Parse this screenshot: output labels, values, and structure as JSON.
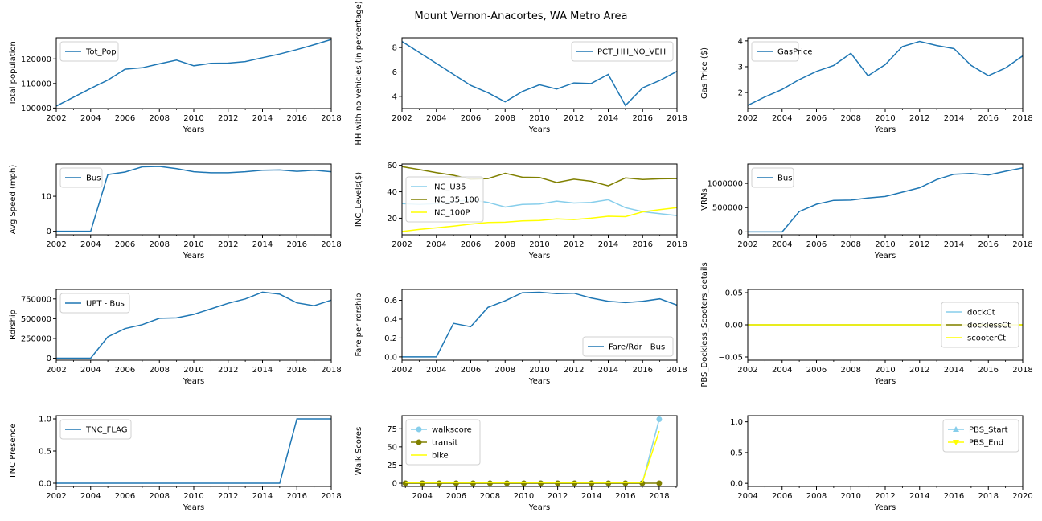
{
  "figure_title": "Mount Vernon-Anacortes, WA Metro Area",
  "x_axis_label": "Years",
  "chart_data": [
    {
      "type": "line",
      "title": "",
      "xlabel": "Years",
      "ylabel": "Total population",
      "xlim": [
        2002,
        2018
      ],
      "ylim": [
        99800,
        128600
      ],
      "xticks": [
        2002,
        2004,
        2006,
        2008,
        2010,
        2012,
        2014,
        2016,
        2018
      ],
      "yticks": [
        100000,
        110000,
        120000
      ],
      "yticklabels": [
        "100000",
        "110000",
        "120000"
      ],
      "legend_loc": "upper-left",
      "series": [
        {
          "name": "Tot_Pop",
          "color": "#1f77b4",
          "x": [
            2002,
            2003,
            2004,
            2005,
            2006,
            2007,
            2008,
            2009,
            2010,
            2011,
            2012,
            2013,
            2014,
            2015,
            2016,
            2017,
            2018
          ],
          "y": [
            100800,
            104400,
            108000,
            111400,
            115800,
            116400,
            118000,
            119500,
            117200,
            118200,
            118300,
            118900,
            120500,
            122000,
            123800,
            125800,
            127900
          ]
        }
      ]
    },
    {
      "type": "line",
      "title": "",
      "xlabel": "Years",
      "ylabel": "HH with no vehicles (in percentage)",
      "xlim": [
        2002,
        2018
      ],
      "ylim": [
        3.0,
        8.8
      ],
      "xticks": [
        2002,
        2004,
        2006,
        2008,
        2010,
        2012,
        2014,
        2016,
        2018
      ],
      "yticks": [
        4,
        6,
        8
      ],
      "yticklabels": [
        "4",
        "6",
        "8"
      ],
      "legend_loc": "upper-right",
      "series": [
        {
          "name": "PCT_HH_NO_VEH",
          "color": "#1f77b4",
          "x": [
            2002,
            2003,
            2004,
            2005,
            2006,
            2007,
            2008,
            2009,
            2010,
            2011,
            2012,
            2013,
            2014,
            2015,
            2016,
            2017,
            2018
          ],
          "y": [
            8.5,
            7.6,
            6.7,
            5.8,
            4.9,
            4.3,
            3.55,
            4.4,
            4.95,
            4.6,
            5.1,
            5.05,
            5.8,
            3.25,
            4.7,
            5.3,
            6.05
          ]
        }
      ]
    },
    {
      "type": "line",
      "title": "",
      "xlabel": "Years",
      "ylabel": "Gas Price ($)",
      "xlim": [
        2002,
        2018
      ],
      "ylim": [
        1.38,
        4.12
      ],
      "xticks": [
        2002,
        2004,
        2006,
        2008,
        2010,
        2012,
        2014,
        2016,
        2018
      ],
      "yticks": [
        2,
        3,
        4
      ],
      "yticklabels": [
        "2",
        "3",
        "4"
      ],
      "legend_loc": "upper-left",
      "series": [
        {
          "name": "GasPrice",
          "color": "#1f77b4",
          "x": [
            2002,
            2003,
            2004,
            2005,
            2006,
            2007,
            2008,
            2009,
            2010,
            2011,
            2012,
            2013,
            2014,
            2015,
            2016,
            2017,
            2018
          ],
          "y": [
            1.5,
            1.83,
            2.12,
            2.5,
            2.82,
            3.05,
            3.52,
            2.65,
            3.08,
            3.78,
            3.98,
            3.82,
            3.7,
            3.05,
            2.65,
            2.95,
            3.42
          ]
        }
      ]
    },
    {
      "type": "line",
      "title": "",
      "xlabel": "Years",
      "ylabel": "Avg Speed (mph)",
      "xlim": [
        2002,
        2018
      ],
      "ylim": [
        -1,
        19.2
      ],
      "xticks": [
        2002,
        2004,
        2006,
        2008,
        2010,
        2012,
        2014,
        2016,
        2018
      ],
      "yticks": [
        0,
        10
      ],
      "yticklabels": [
        "0",
        "10"
      ],
      "legend_loc": "upper-left",
      "series": [
        {
          "name": "Bus",
          "color": "#1f77b4",
          "x": [
            2002,
            2003,
            2004,
            2005,
            2006,
            2007,
            2008,
            2009,
            2010,
            2011,
            2012,
            2013,
            2014,
            2015,
            2016,
            2017,
            2018
          ],
          "y": [
            0,
            0,
            0,
            16.2,
            16.9,
            18.4,
            18.5,
            17.9,
            17.0,
            16.7,
            16.7,
            17.0,
            17.4,
            17.5,
            17.1,
            17.4,
            17.0
          ]
        }
      ]
    },
    {
      "type": "line",
      "title": "",
      "xlabel": "Years",
      "ylabel": "INC_Levels($)",
      "xlim": [
        2002,
        2018
      ],
      "ylim": [
        7.5,
        61
      ],
      "xticks": [
        2002,
        2004,
        2006,
        2008,
        2010,
        2012,
        2014,
        2016,
        2018
      ],
      "yticks": [
        20,
        40,
        60
      ],
      "yticklabels": [
        "20",
        "40",
        "60"
      ],
      "legend_loc": "center-left",
      "series": [
        {
          "name": "INC_U35",
          "color": "#87ceeb",
          "x": [
            2002,
            2003,
            2004,
            2005,
            2006,
            2007,
            2008,
            2009,
            2010,
            2011,
            2012,
            2013,
            2014,
            2015,
            2016,
            2017,
            2018
          ],
          "y": [
            31,
            30.5,
            31,
            32.5,
            34,
            32,
            28.5,
            30.5,
            30.8,
            33,
            31.5,
            32,
            34,
            28,
            25,
            23.5,
            22
          ]
        },
        {
          "name": "INC_35_100",
          "color": "#808000",
          "x": [
            2002,
            2003,
            2004,
            2005,
            2006,
            2007,
            2008,
            2009,
            2010,
            2011,
            2012,
            2013,
            2014,
            2015,
            2016,
            2017,
            2018
          ],
          "y": [
            59,
            56.8,
            54.5,
            52.5,
            49.5,
            50,
            54,
            51,
            50.8,
            47,
            49.5,
            48,
            44.5,
            50.5,
            49.3,
            49.8,
            50
          ]
        },
        {
          "name": "INC_100P",
          "color": "#ffff00",
          "x": [
            2002,
            2003,
            2004,
            2005,
            2006,
            2007,
            2008,
            2009,
            2010,
            2011,
            2012,
            2013,
            2014,
            2015,
            2016,
            2017,
            2018
          ],
          "y": [
            10,
            11.5,
            12.7,
            14,
            15.5,
            16.8,
            17,
            18,
            18.3,
            19.5,
            19,
            20,
            21.5,
            21.2,
            24.8,
            26.5,
            28
          ]
        }
      ]
    },
    {
      "type": "line",
      "title": "",
      "xlabel": "Years",
      "ylabel": "VRMs",
      "xlim": [
        2002,
        2018
      ],
      "ylim": [
        -60000,
        1400000
      ],
      "xticks": [
        2002,
        2004,
        2006,
        2008,
        2010,
        2012,
        2014,
        2016,
        2018
      ],
      "yticks": [
        0,
        500000,
        1000000
      ],
      "yticklabels": [
        "0",
        "500000",
        "1000000"
      ],
      "legend_loc": "upper-left",
      "series": [
        {
          "name": "Bus",
          "color": "#1f77b4",
          "x": [
            2002,
            2003,
            2004,
            2005,
            2006,
            2007,
            2008,
            2009,
            2010,
            2011,
            2012,
            2013,
            2014,
            2015,
            2016,
            2017,
            2018
          ],
          "y": [
            0,
            0,
            0,
            420000,
            570000,
            650000,
            655000,
            700000,
            730000,
            820000,
            910000,
            1080000,
            1190000,
            1205000,
            1175000,
            1250000,
            1320000
          ]
        }
      ]
    },
    {
      "type": "line",
      "title": "",
      "xlabel": "Years",
      "ylabel": "Rdrship",
      "xlim": [
        2002,
        2018
      ],
      "ylim": [
        -25000,
        870000
      ],
      "xticks": [
        2002,
        2004,
        2006,
        2008,
        2010,
        2012,
        2014,
        2016,
        2018
      ],
      "yticks": [
        0,
        250000,
        500000,
        750000
      ],
      "yticklabels": [
        "0",
        "250000",
        "500000",
        "750000"
      ],
      "legend_loc": "upper-left",
      "series": [
        {
          "name": "UPT - Bus",
          "color": "#1f77b4",
          "x": [
            2002,
            2003,
            2004,
            2005,
            2006,
            2007,
            2008,
            2009,
            2010,
            2011,
            2012,
            2013,
            2014,
            2015,
            2016,
            2017,
            2018
          ],
          "y": [
            0,
            0,
            0,
            270000,
            375000,
            425000,
            505000,
            510000,
            555000,
            625000,
            695000,
            750000,
            835000,
            810000,
            700000,
            665000,
            735000
          ]
        }
      ]
    },
    {
      "type": "line",
      "title": "",
      "xlabel": "Years",
      "ylabel": "Fare per rdrship",
      "xlim": [
        2002,
        2018
      ],
      "ylim": [
        -0.035,
        0.715
      ],
      "xticks": [
        2002,
        2004,
        2006,
        2008,
        2010,
        2012,
        2014,
        2016,
        2018
      ],
      "yticks": [
        0.0,
        0.2,
        0.4,
        0.6
      ],
      "yticklabels": [
        "0.0",
        "0.2",
        "0.4",
        "0.6"
      ],
      "legend_loc": "lower-right",
      "series": [
        {
          "name": "Fare/Rdr - Bus",
          "color": "#1f77b4",
          "x": [
            2002,
            2003,
            2004,
            2005,
            2006,
            2007,
            2008,
            2009,
            2010,
            2011,
            2012,
            2013,
            2014,
            2015,
            2016,
            2017,
            2018
          ],
          "y": [
            0,
            0,
            0,
            0.355,
            0.32,
            0.525,
            0.595,
            0.68,
            0.685,
            0.67,
            0.675,
            0.625,
            0.59,
            0.575,
            0.59,
            0.615,
            0.55
          ]
        }
      ]
    },
    {
      "type": "line",
      "title": "",
      "xlabel": "Years",
      "ylabel": "PBS_Dockless_Scooters_details",
      "xlim": [
        2002,
        2018
      ],
      "ylim": [
        -0.055,
        0.055
      ],
      "xticks": [
        2002,
        2004,
        2006,
        2008,
        2010,
        2012,
        2014,
        2016,
        2018
      ],
      "yticks": [
        -0.05,
        0.0,
        0.05
      ],
      "yticklabels": [
        "−0.05",
        "0.00",
        "0.05"
      ],
      "legend_loc": "center-right",
      "series": [
        {
          "name": "dockCt",
          "color": "#87ceeb",
          "x": [
            2002,
            2018
          ],
          "y": [
            0,
            0
          ]
        },
        {
          "name": "docklessCt",
          "color": "#808000",
          "x": [
            2002,
            2018
          ],
          "y": [
            0,
            0
          ]
        },
        {
          "name": "scooterCt",
          "color": "#ffff00",
          "x": [
            2002,
            2018
          ],
          "y": [
            0,
            0
          ]
        }
      ]
    },
    {
      "type": "line",
      "title": "",
      "xlabel": "Years",
      "ylabel": "TNC Presence",
      "xlim": [
        2002,
        2018
      ],
      "ylim": [
        -0.05,
        1.05
      ],
      "xticks": [
        2002,
        2004,
        2006,
        2008,
        2010,
        2012,
        2014,
        2016,
        2018
      ],
      "yticks": [
        0.0,
        0.5,
        1.0
      ],
      "yticklabels": [
        "0.0",
        "0.5",
        "1.0"
      ],
      "legend_loc": "upper-left",
      "series": [
        {
          "name": "TNC_FLAG",
          "color": "#1f77b4",
          "x": [
            2002,
            2003,
            2004,
            2005,
            2006,
            2007,
            2008,
            2009,
            2010,
            2011,
            2012,
            2013,
            2014,
            2015,
            2016,
            2017,
            2018
          ],
          "y": [
            0,
            0,
            0,
            0,
            0,
            0,
            0,
            0,
            0,
            0,
            0,
            0,
            0,
            0,
            1,
            1,
            1
          ]
        }
      ]
    },
    {
      "type": "line",
      "title": "",
      "xlabel": "Years",
      "ylabel": "Walk Scores",
      "xlim": [
        2002.8,
        2019.05
      ],
      "ylim": [
        -4.4,
        93
      ],
      "xticks": [
        2004,
        2006,
        2008,
        2010,
        2012,
        2014,
        2016,
        2018
      ],
      "yticks": [
        0,
        25,
        50,
        75
      ],
      "yticklabels": [
        "0",
        "25",
        "50",
        "75"
      ],
      "legend_loc": "upper-left",
      "series": [
        {
          "name": "walkscore",
          "color": "#87ceeb",
          "marker": "circle",
          "x": [
            2003,
            2004,
            2005,
            2006,
            2007,
            2008,
            2009,
            2010,
            2011,
            2012,
            2013,
            2014,
            2015,
            2016,
            2017,
            2018
          ],
          "y": [
            0,
            0,
            0,
            0,
            0,
            0,
            0,
            0,
            0,
            0,
            0,
            0,
            0,
            0,
            0,
            88
          ]
        },
        {
          "name": "transit",
          "color": "#808000",
          "marker": "circle",
          "x": [
            2003,
            2004,
            2005,
            2006,
            2007,
            2008,
            2009,
            2010,
            2011,
            2012,
            2013,
            2014,
            2015,
            2016,
            2017,
            2018
          ],
          "y": [
            0,
            0,
            0,
            0,
            0,
            0,
            0,
            0,
            0,
            0,
            0,
            0,
            0,
            0,
            0,
            0
          ]
        },
        {
          "name": "bike",
          "color": "#ffff00",
          "marker": "none",
          "x": [
            2003,
            2004,
            2005,
            2006,
            2007,
            2008,
            2009,
            2010,
            2011,
            2012,
            2013,
            2014,
            2015,
            2016,
            2017,
            2018
          ],
          "y": [
            1,
            1,
            1,
            1,
            1,
            1,
            1,
            1,
            1,
            1,
            1,
            1,
            1,
            1,
            1,
            72
          ]
        }
      ]
    },
    {
      "type": "line",
      "title": "",
      "xlabel": "Years",
      "ylabel": "",
      "xlim": [
        2004,
        2020
      ],
      "ylim": [
        -0.05,
        1.1
      ],
      "xticks": [
        2004,
        2006,
        2008,
        2010,
        2012,
        2014,
        2016,
        2018,
        2020
      ],
      "yticks": [
        0.0,
        0.5,
        1.0
      ],
      "yticklabels": [
        "0.0",
        "0.5",
        "1.0"
      ],
      "legend_loc": "upper-right",
      "series": [
        {
          "name": "PBS_Start",
          "color": "#87ceeb",
          "marker": "triangle",
          "x": [],
          "y": []
        },
        {
          "name": "PBS_End",
          "color": "#ffff00",
          "marker": "triangle-down",
          "x": [],
          "y": []
        }
      ]
    }
  ]
}
